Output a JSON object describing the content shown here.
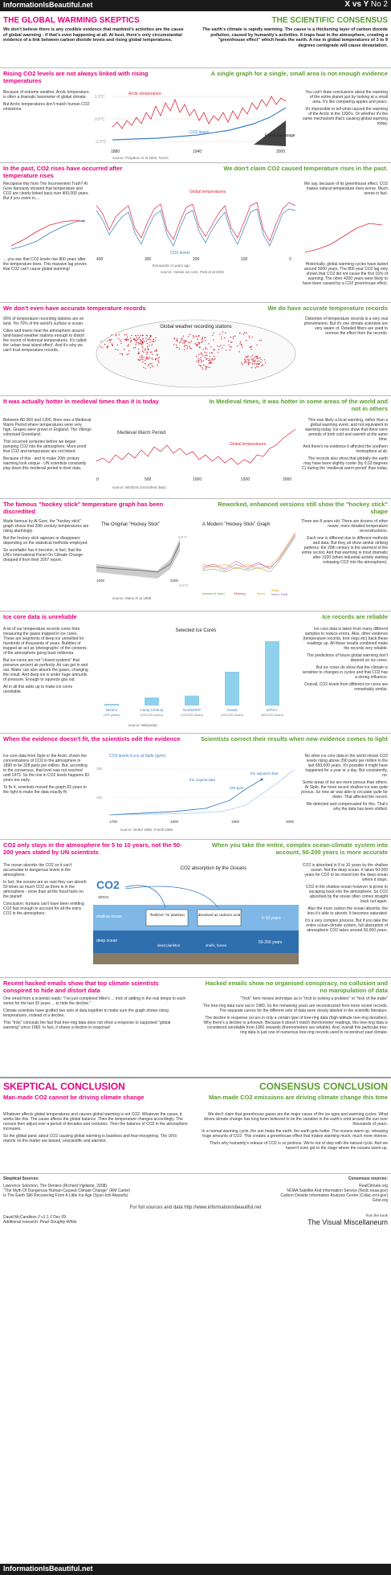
{
  "header": {
    "site": "InformationIsBeautiful.net",
    "versus": "X vs Y",
    "number": "No 2"
  },
  "titles": {
    "left": "THE GLOBAL WARMING SKEPTICS",
    "right": "THE SCIENTIFIC CONSENSUS"
  },
  "intro": {
    "left": "We don't believe there is any credible evidence that mankind's activities are the cause of global warming - if that's even happening at all. At best, there's only circumstantial evidence of a link between carbon dioxide levels and rising global temperatures.",
    "right": "The earth's climate is rapidly warming. The cause is a thickening layer of carbon dioxide pollution, caused by humanity's activities. It traps heat in the atmosphere, creating a \"greenhouse effect\" which heats the earth. A rise in global temperatures of 3 to 9 degrees centigrade will cause devastation."
  },
  "s1": {
    "left_title": "Rising CO2 levels are not always linked with rising temperatures",
    "left_p1": "Because of extreme weather, Arctic temperature is often a dramatic barometer of global climate.",
    "left_p2": "But Arctic temperatures don't match human CO2 emissions.",
    "right_title": "A single graph for a single, small area is not enough evidence",
    "right_p1": "You can't draw conclusions about the warming of the entire planet just by looking at a small area. It's like comparing apples and pears.",
    "right_p2": "It's impossible to tell what caused the warming of the Arctic in the 1930's. Or whether it's the same mechanism that's causing global warming today.",
    "chart_arctic": "Arctic temperature",
    "chart_co2": "CO2 levels",
    "chart_fossil": "Fossil fuel usage",
    "y1": "1.0°C",
    "y2": "0.0°C",
    "y3": "-1.0°C",
    "x1": "1880",
    "x2": "1940",
    "x3": "2000",
    "source": "source: Polyakov et al 2002, NASA"
  },
  "s2": {
    "left_title": "In the past, CO2 rises have occurred after temperature rises",
    "left_p1": "Recognise this from The Inconvenient Truth? Al Gore famously showed that temperature and CO2 are clearly linked back over 400,000 years. But if you zoom in....",
    "left_p2": "... you see that CO2 levels rise 800 years after the temperature does. This massive lag proves that CO2 can't cause global warming!",
    "right_title": "We don't claim CO2 caused temperature rises in the past.",
    "right_p1": "We say, because of its greenhouse effect, CO2 makes natural temperature rises worse. Much worse in fact.",
    "right_p2": "Historically, global warming cycles have lasted around 5000 years. The 800 year CO2 lag only shows that CO2 did not cause the first 16% of warming. The other 4200 years were likely to have been caused by a CO2 greenhouse effect.",
    "chart_temp": "Global temperatures",
    "chart_co2": "CO2 levels",
    "chart_xlabel": "thousands of years ago",
    "x1": "400",
    "x2": "300",
    "x3": "200",
    "x4": "100",
    "x5": "0",
    "source": "source: Vostok ice core, Petit et al 2002"
  },
  "s3": {
    "left_title": "We don't even have accurate temperature records",
    "left_p1": "90% of temperature recording stations are on land. Yet 70% of the world's surface is ocean.",
    "left_p2": "Cities and towns heat the atmosphere around land-based weather stations enough to distort the record of historical temperatures. It's called the 'urban heat island effect'. And it's why we can't trust temperature records.",
    "right_title": "We do have accurate temperature records",
    "right_p1": "Distortion of temperature records is a very real phenomenon. But it's one climate scientists are very aware of. Detailed filters are used to remove the effect from the records.",
    "map_title": "Global weather recording stations"
  },
  "s4": {
    "left_title": "It was actually hotter in medieval times than it is today",
    "left_p1": "Between AD 800 and 1300, there was a Medieval Warm Period where temperatures were very high. Grapes were grown in England. The Vikings colonised Greenland.",
    "left_p2": "This occurred centuries before we began pumping CO2 into the atmosphere. More proof that CO2 and temperature are not linked.",
    "left_p3": "Because of this - and to make 20th century warming look unique - UN scientists constantly play down this medieval period in their data.",
    "right_title": "In Medieval times, it was hotter in some areas of the world and not in others",
    "right_p1": "This was likely a local warming, rather than a global warming event, and not equivalent to warming today. Ice cores show that there were periods of both cold and warmth at the same time.",
    "right_p2": "And there's no evidence it affected the southern hemisphere at all.",
    "right_p3": "The records also show that globally the earth may have been slightly cooler (by 0.03 degrees C) during the 'medieval warm period' than today.",
    "chart_mwp": "Medieval Warm Period",
    "chart_temp": "Global temperatures",
    "x1": "0",
    "x2": "500",
    "x3": "1000",
    "x4": "1500",
    "x5": "2000",
    "source": "source: NESDIS (smoothed data)"
  },
  "s5": {
    "left_title": "The famous \"hockey stick\" temperature graph has been discredited",
    "left_p1": "Made famous by Al Gore, the \"hockey stick\" graph shows that 20th century temperatures are rising alarmingly.",
    "left_p2": "But the hockey stick appears or disappears depending on the statistical methods employed.",
    "left_p3": "So unreliable has it become, in fact, that the UN's International Panel On Climate Change dropped it from their 2007 report.",
    "right_title": "Reworked, enhanced versions still show the \"hockey stick\" shape",
    "right_p1": "There are 8 years old. There are dozens of other newer, more detailed temperature reconstructions.",
    "right_p2": "Each one is different due to different methods and data. But they all show similar striking patterns: the 20th century is the warmest of the entire record. And that warming is most dramatic after 1920 (when industrial activity starting releasing CO2 into the atmosphere).",
    "chart_orig": "The Original \"Hockey Stick\"",
    "chart_new": "A Modern \"Hockey Stick\" Graph",
    "pos": "0.5°C",
    "neg": "-0.5°C",
    "x1": "1000",
    "x2": "2000",
    "legend1": "Amman & Wahl",
    "legend2": "Moberg",
    "legend3": "Mann",
    "legend4": "Briffa",
    "legend5": "Mann 1998",
    "source": "source: Mann et al 1998"
  },
  "s6": {
    "left_title": "Ice core data is unreliable",
    "left_p1": "A lot of our temperature records come from measuring the gases trapped in ice cores. These are segments of deep ice unmelted for hundreds of thousands of years. Bubbles of trapped air act as 'photographs' of the contents of the atmosphere going back millennia.",
    "left_p2": "But ice-cores are not \"closed systems\" that preserve ancient air perfectly. Air can get in and out. Water can also absorb the gases, changing the result. And deep ice is under huge amounts of pressure. Enough to squeeze gas out.",
    "left_p3": "All in all this adds up to make ice cores unreliable.",
    "right_title": "Ice records are reliable",
    "right_p1": "Ice core data is taken from many different samples to reduce errors. Also, other evidence (temperature records, tree rings etc) back these readings up. All these results combined make the records very reliable.",
    "right_p2": "The predictions of future global warming don't depend on ice cores.",
    "right_p3": "But ice cores do show that the climate is sensitive to changes in cycles and that CO2 has a strong influence.",
    "right_p4": "Overall, CO2 levels from different ice cores are remarkably similar.",
    "chart_title": "Selected Ice Cores",
    "cores": [
      {
        "name": "Mizuho",
        "years": "(700 years)",
        "value": 700
      },
      {
        "name": "Camp Century",
        "years": "(100,000 years)",
        "value": 100000
      },
      {
        "name": "NorthGRIP",
        "years": "(123,000 years)",
        "value": 123000
      },
      {
        "name": "Vostok",
        "years": "(420,000 years)",
        "value": 420000
      },
      {
        "name": "EPICA",
        "years": "(800,000 years)",
        "value": 800000
      }
    ],
    "source": "source: Wikipedia"
  },
  "s7": {
    "left_title": "When the evidence doesn't fit, the scientists edit the evidence",
    "left_p1": "Ice core data from Siple in the Arctic shows the concentrations of CO2 in the atmosphere in 1890 to be 328 parts per million. But, according to the consensus, that level was not reached until 1973. So the rise in CO2 levels happens 83 years too early.",
    "left_p2": "To fix it, scientists moved the graph 83 years to the right to make the data exactly fit.",
    "right_title": "Scientists correct their results when new evidence comes to light",
    "right_p1": "No other ice core data in the world shows CO2 levels rising above 290 parts per million in the last 650,000 years. It's possible it might have happened for a year or a day. But consistently, no.",
    "right_p2": "Some areas of ice are more porous than others. At Siple, the more recent shallow ice was quite porous. So new air was able to circulate quite far down. That affected the record.",
    "right_p3": "We detected and compensated for this. That's why the data has been shifted.",
    "chart_title": "CO2 levels in ice at Siple (ppm)",
    "chart_orig": "the original data",
    "chart_adj": "the adjusted data",
    "chart_328": "328 ppm",
    "x1": "1700",
    "x2": "1800",
    "x3": "1900",
    "x4": "2000",
    "y1": "350",
    "y2": "300",
    "source": "source: Neftel 1985, Friedli 1986"
  },
  "s8": {
    "left_title": "CO2 only stays in the atmosphere for 5 to 10 years, not the 50-200 years stated by UN scientists",
    "left_p1": "The ocean absorbs the CO2 so it can't accumulate to dangerous levels in the atmosphere.",
    "left_p2": "In fact, the oceans are so vast they can absorb 50 times as much CO2 as there is in the atmosphere - more than all the fossil fuels on the planet!",
    "left_p3": "Conclusion: humans can't have been emitting CO2 fast enough to account for all the extra CO2 in the atmosphere.",
    "right_title": "When you take the entire, complex ocean-climate system into account, 50-200 years is more accurate",
    "right_p1": "CO2 is absorbed in 5 to 10 years by the shallow ocean. Not the deep ocean. It takes 50-200 years for CO2 to be mixed into the deep ocean where it stays.",
    "right_p2": "CO2 in the shallow ocean however is prone to escaping back into the atmosphere. So CO2 absorbed by the ocean often comes straight back out again.",
    "right_p3": "Also the more carbon the ocean absorbs, the less it's able to absorb. It becomes saturated.",
    "right_p4": "It's a very complex process. But if you take the entire ocean-climate system, full absorption of atmospheric CO2 takes around 50,000 years.",
    "diagram_title": "CO2 absorption by the Oceans",
    "co2": "CO2",
    "atmos": "atmos",
    "shallow": "shallow ocean",
    "deep": "deep ocean",
    "fert": "\"fertilizer\" for plankton",
    "diss": "dissolved as carbonic acid",
    "dead": "dead plankton",
    "shells": "shells, bones",
    "years1": "5-10 years",
    "years2": "50-200 years"
  },
  "s9": {
    "left_title": "Recent hacked emails show that top climate scientists conspired to hide and distort data",
    "left_p1": "One email from a scientist reads: \"I've just completed Mike's ... trick of adding in the real temps to each series for the last 20 years ... to hide the decline.\"",
    "left_p2": "Climate scientists have grafted two sets of data together to make sure the graph shows rising temperatures, instead of a decline.",
    "left_p3": "This \"trick\" conceals the fact that tree-ring data does not show a response to supposed \"global warming\" since 1960. In fact, it shows a decline in response!",
    "right_title": "Hacked emails show no organised conspiracy, no collusion and no manipulation of data",
    "right_p1": "\"Trick\" here means technique as in \"trick to solving a problem\" or \"trick of the trade\"",
    "right_p2": "The tree-ring data runs out in 1980. So the remaining years are reconstructed from more recent records. The separate curves for the different sets of data were clearly labeled in the scientific literature.",
    "right_p3": "The decline in response occurs in only a certain type of tree-ring data (high-latitude tree-ring densities). Why there's a decline is unknown. Because it doesn't match thermometer readings, this tree-ring data is considered unreliable from 1960 onwards (thermometers are reliable). And, overall this particular tree-ring data is just one of numerous tree-ring records used to reconstruct past climate."
  },
  "conclusion": {
    "left_head": "SKEPTICAL CONCLUSION",
    "left_sub": "Man-made CO2 cannot be driving climate change",
    "left_p1": "Whatever affects global temperatures and causes global warming is not CO2. Whatever the cause, it works like this. The cause affects the global balance. Then the temperature changes accordingly. The oceans then adjust over a period of decades and centuries. Then the balance of CO2 in the atmosphere increases.",
    "left_p2": "So the global panic about CO2 causing global warming is baseless and fear-mongering. The UN's reports on the matter are biased, unscientific and alarmist.",
    "right_head": "CONSENSUS CONCLUSION",
    "right_sub": "Man-made CO2 emissions are driving climate change this time",
    "right_p1": "We don't claim that greenhouse gases are the major cause of the ice ages and warming cycles. What drives climate change has long been believed to be the variation in the earth's orbit around the sun over thousands of years.",
    "right_p2": "In a normal warming cycle, the sun heats the earth, the earth gets hotter. The oceans warm up, releasing huge amounts of CO2. This creates a greenhouse effect that makes warming much, much more intense.",
    "right_p3": "That's why humanity's release of CO2 is so perilous. We're out of step with the natural cycle. And we haven't even got to the stage where the oceans warm up."
  },
  "sources": {
    "left_head": "Skeptical Sources:",
    "left_items": [
      "Lawrence Solomon, The Deniers (Richard Vigilante, 2008)",
      "\"The Myth Of Dangerous Human-Caused Climate Change\" (RM Carter)",
      "Is The Earth Still Recovering From A Little Ice Age (Syun-Ichi Akasofu)"
    ],
    "right_head": "Consensus sources:",
    "right_items": [
      "RealClimate.org",
      "NOAA Satellite And Information Service (Ncdc.noaa.gov)",
      "Carbon Dioxide Information Analysis Centre (Cdiac.ornl.gov)",
      "Grist.org"
    ],
    "full": "For full sources and data http://www.informationisbeautiful.net"
  },
  "credits": {
    "author": "David McCandless // v1.1 // Dec 09",
    "research": "Additional research: Pearl Doughty-White",
    "book_pre": "from the book",
    "book": "The Visual Miscellaneum"
  },
  "colors": {
    "pink": "#e6007e",
    "green": "#5a9e2f",
    "red": "#d9283c",
    "blue": "#3b7fc4",
    "dark": "#1a1a1a"
  }
}
